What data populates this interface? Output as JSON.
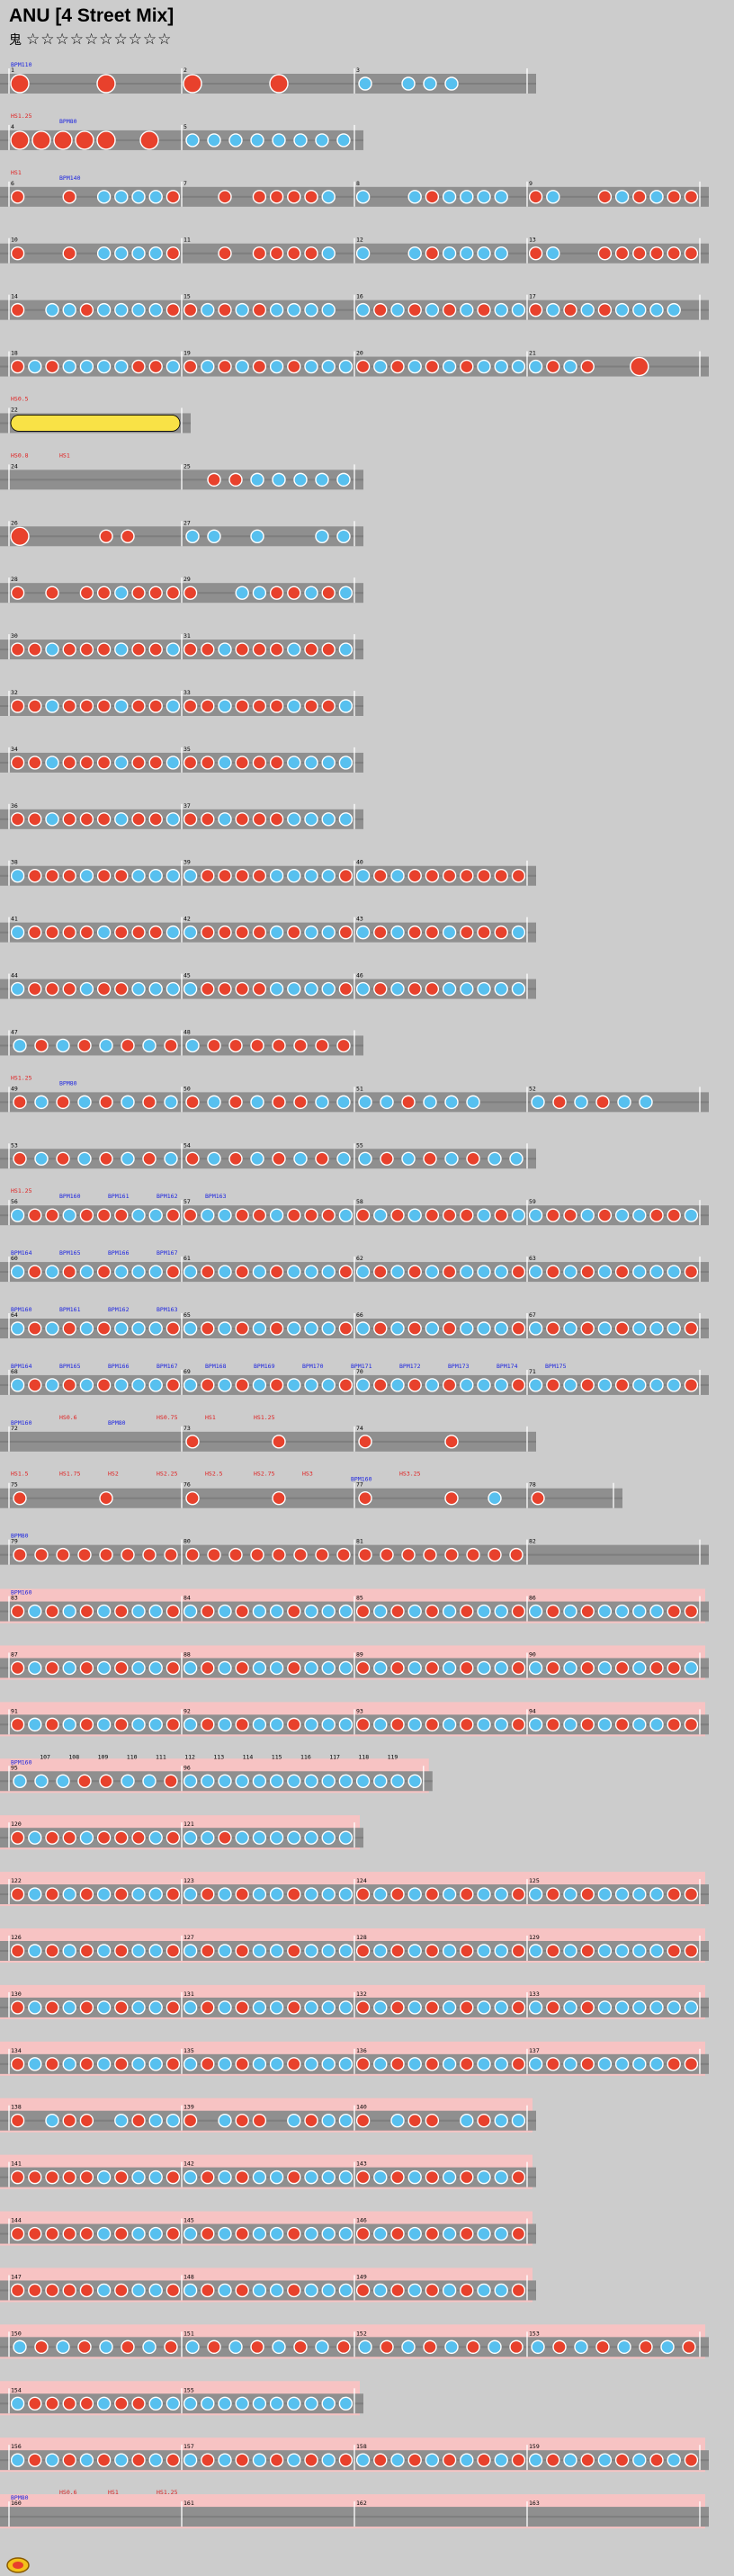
{
  "song": {
    "title": "ANU [4 Street Mix]"
  },
  "difficulty": {
    "label": "鬼",
    "stars": "☆☆☆☆☆☆☆☆☆☆"
  },
  "colors": {
    "background": "#cccccc",
    "lane": "#8f8f8f",
    "lane_dark": "#6a6a6a",
    "gogo": "#f7c3c3",
    "don": "#e8412c",
    "ka": "#57c0ef",
    "roll": "#f9e246",
    "bpm_text": "#1c24e0",
    "scroll_text": "#e02020",
    "measure_number": "#000000"
  },
  "icons": {
    "logo": "taiko-logo-icon"
  },
  "chart_data": {
    "type": "table",
    "notation": "taiko note chart; d = don (red), k = ka (blue), D/K = large notes, r = drumroll, . = rest",
    "rows": [
      {
        "first_measure": 1,
        "labels": [
          "BPM110"
        ],
        "measures": [
          "D...D...",
          "D...D...",
          "k.kkk..."
        ]
      },
      {
        "first_measure": 4,
        "labels": [
          "HS1.25",
          "BPM80"
        ],
        "measures": [
          "DDDDD.D.",
          "kkkkkkkk"
        ]
      },
      {
        "first_measure": 6,
        "labels": [
          "HS1",
          "BPM140"
        ],
        "measures": [
          "d..d.kkkkd",
          "..d.ddddk.",
          "k..kdkkkk.",
          "dk..dkdkdd"
        ]
      },
      {
        "first_measure": 10,
        "measures": [
          "d..d.kkkkd",
          "..d.ddddk.",
          "k..kdkkkk.",
          "dk..dddddd"
        ]
      },
      {
        "first_measure": 14,
        "measures": [
          "d.kkdkkkkd",
          "dkdkdkkkk.",
          "kdkdkdkdkk",
          "dkdkdkkkk."
        ]
      },
      {
        "first_measure": 18,
        "measures": [
          "dkdkkkkddk",
          "dkdkdkdkkk",
          "dkdkdkdkkk",
          "kdkd..D..."
        ]
      },
      {
        "first_measure": 22,
        "labels": [
          "HS0.5"
        ],
        "measures": [
          "rrrrrrrr"
        ]
      },
      {
        "first_measure": 24,
        "labels": [
          "HS0.8",
          "HS1"
        ],
        "measures": [
          "........",
          ".ddkkkkk"
        ]
      },
      {
        "first_measure": 26,
        "measures": [
          "D...dd..",
          "kk.k..kk"
        ]
      },
      {
        "first_measure": 28,
        "measures": [
          "d.d.ddkddd",
          "d..kkddkdk"
        ]
      },
      {
        "first_measure": 30,
        "measures": [
          "ddkdddkddk",
          "ddkdddkddk"
        ]
      },
      {
        "first_measure": 32,
        "measures": [
          "ddkdddkddk",
          "ddkdddkddk"
        ]
      },
      {
        "first_measure": 34,
        "measures": [
          "ddkdddkddk",
          "ddkdddkkkk"
        ]
      },
      {
        "first_measure": 36,
        "measures": [
          "ddkdddkddk",
          "ddkdddkkkk"
        ]
      },
      {
        "first_measure": 38,
        "measures": [
          "kdddkddkkk",
          "kddddkkkkd",
          "kdkddddddd"
        ]
      },
      {
        "first_measure": 41,
        "measures": [
          "kddddkdddk",
          "kddddkdkkd",
          "kdkddkdddk"
        ]
      },
      {
        "first_measure": 44,
        "measures": [
          "kdddkddkkk",
          "kddddkkkkd",
          "kdkddkkkkk"
        ]
      },
      {
        "first_measure": 47,
        "measures": [
          "kdkdkdkd",
          "kddddddd"
        ]
      },
      {
        "first_measure": 49,
        "labels": [
          "HS1.25",
          "BPM80"
        ],
        "measures": [
          "dkdkdkdk",
          "dkdkddkk",
          "kkdkkk..",
          "kdkdkk.."
        ]
      },
      {
        "first_measure": 53,
        "measures": [
          "dkdkdkdk",
          "dkdkdkdk",
          "kdkdkdkk"
        ]
      },
      {
        "first_measure": 56,
        "labels": [
          "HS1.25",
          "BPM160",
          "BPM161",
          "BPM162",
          "BPM163"
        ],
        "measures": [
          "kddkdddkkd",
          "dkkddkdddk",
          "dkdkdddkdk",
          "kddkdkkddk"
        ]
      },
      {
        "first_measure": 60,
        "labels": [
          "BPM164",
          "BPM165",
          "BPM166",
          "BPM167"
        ],
        "measures": [
          "kdkdkdkkkd",
          "kdkdkdkkkd",
          "kdkdkdkkkd",
          "kdkdkdkkkd"
        ]
      },
      {
        "first_measure": 64,
        "labels": [
          "BPM160",
          "BPM161",
          "BPM162",
          "BPM163"
        ],
        "measures": [
          "kdkdkdkkkd",
          "kdkdkdkkkd",
          "kdkdkdkkkd",
          "kdkdkdkkkd"
        ]
      },
      {
        "first_measure": 68,
        "labels": [
          "BPM164",
          "BPM165",
          "BPM166",
          "BPM167",
          "BPM168",
          "BPM169",
          "BPM170",
          "BPM171",
          "BPM172",
          "BPM173",
          "BPM174",
          "BPM175"
        ],
        "measures": [
          "kdkdkdkkkd",
          "kdkdkdkkkd",
          "kdkdkdkkkd",
          "kdkdkdkkkd"
        ]
      },
      {
        "first_measure": 72,
        "labels": [
          "BPM160",
          "HS0.6",
          "BPM80",
          "HS0.75",
          "HS1",
          "HS1.25"
        ],
        "measures": [
          "........",
          "d...d...",
          "d...d..."
        ]
      },
      {
        "first_measure": 75,
        "labels": [
          "HS1.5",
          "HS1.75",
          "HS2",
          "HS2.25",
          "HS2.5",
          "HS2.75",
          "HS3",
          "BPM160",
          "HS3.25"
        ],
        "measures": [
          "d...d...",
          "d...d...",
          "d...d.k.",
          "d..."
        ]
      },
      {
        "first_measure": 79,
        "labels": [
          "BPM80"
        ],
        "measures": [
          "dddddddd",
          "dddddddd",
          "dddddddd",
          "........"
        ]
      },
      {
        "first_measure": 83,
        "labels": [
          "BPM160"
        ],
        "measures": [
          "dkdkdkdkkd",
          "kdkdkkdkkk",
          "dkdkdkdkkd",
          "kdkdkkkkdd"
        ]
      },
      {
        "first_measure": 87,
        "measures": [
          "dkdkdkdkkd",
          "kdkdkkdkkk",
          "dkdkdkdkkd",
          "kdkdkdkddk"
        ]
      },
      {
        "first_measure": 91,
        "measures": [
          "dkdkdkdkkd",
          "kdkdkkdkkk",
          "dkdkdkdkkd",
          "kdkdkdkkdd"
        ]
      },
      {
        "first_measure": 95,
        "labels": [
          "BPM160",
          "107",
          "108",
          "109",
          "110",
          "111",
          "112",
          "113",
          "114",
          "115",
          "116",
          "117",
          "118",
          "119"
        ],
        "measures": [
          "kkkddkkd",
          "kkkkkkkkkkkkkk"
        ]
      },
      {
        "first_measure": 120,
        "measures": [
          "dkddkdddkd",
          "kkdkkkkkkk"
        ]
      },
      {
        "first_measure": 122,
        "measures": [
          "dkdkdkdkkd",
          "kdkdkkdkkk",
          "dkdkdkdkkd",
          "kdkdkkkkdd"
        ]
      },
      {
        "first_measure": 126,
        "measures": [
          "dkdkdkdkkd",
          "kdkdkkdkkk",
          "dkdkdkdkkd",
          "kdkdkkkkdd"
        ]
      },
      {
        "first_measure": 130,
        "measures": [
          "dkdkdkdkkd",
          "kdkdkkdkkk",
          "dkdkdkdkkd",
          "kdkdkkkkkk"
        ]
      },
      {
        "first_measure": 134,
        "measures": [
          "dkdkdkdkkd",
          "kdkdkkdkkk",
          "dkdkdkdkkd",
          "kdkdkkkkdd"
        ]
      },
      {
        "first_measure": 138,
        "measures": [
          "d.kdd.kdkk",
          "d.kdd.kdkk",
          "d.kdd.kdkk"
        ]
      },
      {
        "first_measure": 141,
        "measures": [
          "dddddkdkkd",
          "kdkdkkdkkk",
          "dkdkdkdkkd"
        ]
      },
      {
        "first_measure": 144,
        "measures": [
          "dddddkdkkd",
          "kdkdkkdkkk",
          "dkdkdkdkkd"
        ]
      },
      {
        "first_measure": 147,
        "measures": [
          "dddddkdkkd",
          "kdkdkkdkkk",
          "dkdkdkdkkd"
        ]
      },
      {
        "first_measure": 150,
        "measures": [
          "kdkdkdkd",
          "kdkdkdkd",
          "kdkdkdkd",
          "kdkdkdkd"
        ]
      },
      {
        "first_measure": 154,
        "measures": [
          "kddddkddkk",
          "kkkkkkkkkk"
        ]
      },
      {
        "first_measure": 156,
        "measures": [
          "kdkdkdkdkd",
          "kdkdkdkdkd",
          "kdkdkdkdkd",
          "kdkdkdkdkd"
        ]
      },
      {
        "first_measure": 160,
        "labels": [
          "BPM80",
          "HS0.6",
          "HS1",
          "HS1.25"
        ],
        "measures": [
          "........",
          "........",
          "........",
          "........"
        ]
      }
    ]
  }
}
